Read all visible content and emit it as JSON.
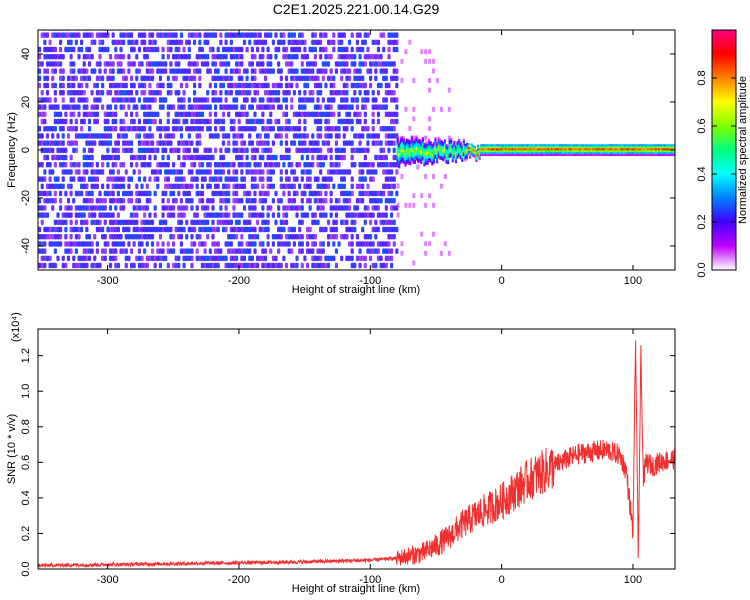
{
  "title": "C2E1.2025.221.00.14.G29",
  "colors": {
    "spectrogram_noise": "#7a00ff",
    "snr_line": "#f03030",
    "axes": "#000000"
  },
  "chart_data": [
    {
      "type": "heatmap",
      "title": "C2E1.2025.221.00.14.G29",
      "xlabel": "Height of straight line (km)",
      "ylabel": "Frequency (Hz)",
      "xlim": [
        -353,
        132
      ],
      "ylim": [
        -50,
        50
      ],
      "xticks": [
        -300,
        -200,
        -100,
        0,
        100
      ],
      "yticks": [
        -40,
        -20,
        0,
        20,
        40
      ],
      "grid": false,
      "colorbar": {
        "label": "Normalized spectral amplitude",
        "range": [
          0,
          1
        ],
        "ticks": [
          "0.0",
          "0.2",
          "0.4",
          "0.6",
          "0.8"
        ],
        "colormap": [
          "#ffffff",
          "#c000ff",
          "#4000ff",
          "#0080ff",
          "#00ffff",
          "#00ff80",
          "#80ff00",
          "#ffff00",
          "#ff8000",
          "#ff0000",
          "#ff0080"
        ]
      },
      "regions": [
        {
          "name": "noise",
          "x_range": [
            -353,
            -80
          ],
          "freq_range": [
            -50,
            50
          ],
          "amplitude": 0.12
        },
        {
          "name": "signal",
          "x_range": [
            -80,
            132
          ],
          "center_freq": 0,
          "amplitude": 0.9
        }
      ]
    },
    {
      "type": "line",
      "xlabel": "Height of straight line (km)",
      "ylabel": "SNR (10 * v/v)",
      "y_multiplier": "(x10⁴)",
      "xlim": [
        -353,
        132
      ],
      "ylim": [
        0,
        1.35
      ],
      "xticks": [
        -300,
        -200,
        -100,
        0,
        100
      ],
      "yticks": [
        "0.0",
        "0.2",
        "0.4",
        "0.6",
        "0.8",
        "1.0",
        "1.2"
      ],
      "grid": false,
      "x": [
        -353,
        -300,
        -250,
        -200,
        -150,
        -100,
        -80,
        -60,
        -50,
        -40,
        -30,
        -20,
        -10,
        0,
        10,
        20,
        30,
        40,
        50,
        60,
        70,
        80,
        90,
        95,
        100,
        102,
        104,
        106,
        108,
        110,
        115,
        120,
        125,
        132
      ],
      "y": [
        0.02,
        0.025,
        0.03,
        0.035,
        0.04,
        0.05,
        0.06,
        0.09,
        0.13,
        0.18,
        0.25,
        0.3,
        0.34,
        0.38,
        0.44,
        0.5,
        0.54,
        0.58,
        0.62,
        0.65,
        0.66,
        0.67,
        0.64,
        0.55,
        0.2,
        1.3,
        0.05,
        1.2,
        0.5,
        0.6,
        0.58,
        0.6,
        0.61,
        0.62
      ]
    }
  ]
}
